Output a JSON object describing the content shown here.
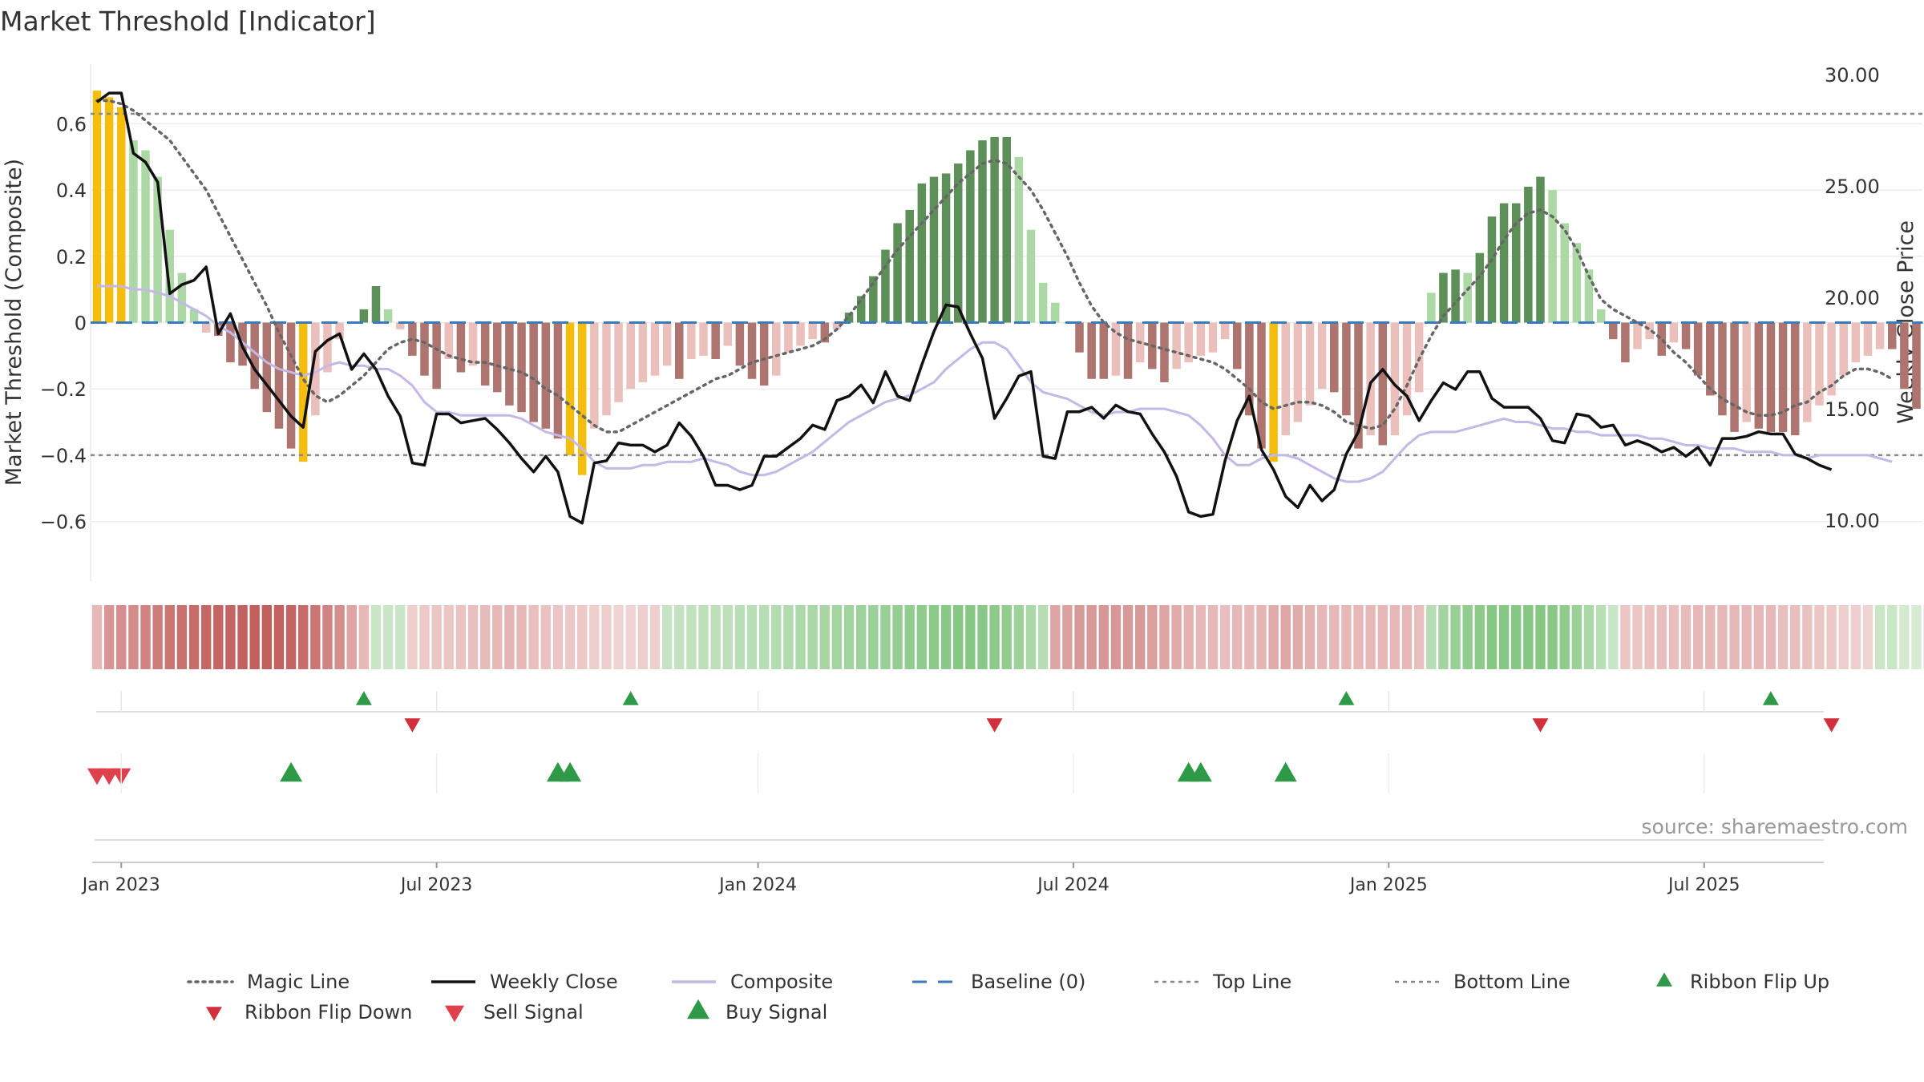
{
  "chart_data": {
    "type": "bar",
    "title": "Market Threshold [Indicator]",
    "ylabel_left": "Market Threshold (Composite)",
    "ylabel_right": "Weekly Close Price",
    "source": "source: sharemaestro.com",
    "ylim_left": [
      -0.78,
      0.78
    ],
    "ylim_right": [
      7.3,
      30.5
    ],
    "yticks_left": [
      0.6,
      0.4,
      0.2,
      0,
      -0.2,
      -0.4,
      -0.6
    ],
    "yticks_left_labels": [
      "0.6",
      "0.4",
      "0.2",
      "0",
      "−0.2",
      "−0.4",
      "−0.6"
    ],
    "yticks_right": [
      30,
      25,
      20,
      15,
      10
    ],
    "yticks_right_labels": [
      "30.00",
      "25.00",
      "20.00",
      "15.00",
      "10.00"
    ],
    "top_line": 0.63,
    "bottom_line": -0.4,
    "xticks": [
      {
        "label": "Jan 2023",
        "week": 2
      },
      {
        "label": "Jul 2023",
        "week": 28
      },
      {
        "label": "Jan 2024",
        "week": 54.5
      },
      {
        "label": "Jul 2024",
        "week": 80.5
      },
      {
        "label": "Jan 2025",
        "week": 106.5
      },
      {
        "label": "Jul 2025",
        "week": 132.5
      }
    ],
    "composite_bars": [
      0.7,
      0.68,
      0.65,
      0.55,
      0.52,
      0.44,
      0.28,
      0.15,
      0.04,
      -0.03,
      -0.04,
      -0.12,
      -0.13,
      -0.2,
      -0.27,
      -0.32,
      -0.38,
      -0.42,
      -0.28,
      -0.15,
      -0.05,
      0,
      0.04,
      0.11,
      0.04,
      -0.02,
      -0.1,
      -0.16,
      -0.2,
      -0.11,
      -0.15,
      -0.13,
      -0.19,
      -0.21,
      -0.25,
      -0.27,
      -0.3,
      -0.32,
      -0.35,
      -0.4,
      -0.46,
      -0.32,
      -0.28,
      -0.24,
      -0.2,
      -0.18,
      -0.16,
      -0.13,
      -0.17,
      -0.11,
      -0.1,
      -0.11,
      -0.07,
      -0.13,
      -0.17,
      -0.19,
      -0.16,
      -0.09,
      -0.07,
      -0.05,
      -0.06,
      -0.02,
      0.03,
      0.08,
      0.14,
      0.22,
      0.3,
      0.34,
      0.42,
      0.44,
      0.45,
      0.48,
      0.52,
      0.55,
      0.56,
      0.56,
      0.5,
      0.28,
      0.12,
      0.06,
      0,
      -0.09,
      -0.17,
      -0.17,
      -0.16,
      -0.17,
      -0.12,
      -0.14,
      -0.18,
      -0.14,
      -0.12,
      -0.1,
      -0.09,
      -0.05,
      -0.14,
      -0.28,
      -0.38,
      -0.42,
      -0.34,
      -0.3,
      -0.25,
      -0.2,
      -0.21,
      -0.28,
      -0.38,
      -0.34,
      -0.37,
      -0.34,
      -0.28,
      -0.21,
      0.09,
      0.15,
      0.16,
      0.15,
      0.21,
      0.32,
      0.36,
      0.36,
      0.41,
      0.44,
      0.4,
      0.3,
      0.24,
      0.16,
      0.04,
      -0.05,
      -0.12,
      -0.08,
      -0.05,
      -0.1,
      -0.06,
      -0.08,
      -0.16,
      -0.22,
      -0.28,
      -0.33,
      -0.3,
      -0.32,
      -0.33,
      -0.33,
      -0.34,
      -0.3,
      -0.25,
      -0.22,
      -0.16,
      -0.12,
      -0.1,
      -0.08,
      -0.08,
      -0.2,
      -0.26
    ],
    "bar_colors_legend": {
      "extreme": "#f5bd0c",
      "strong_pos": "#5d8f58",
      "weak_pos": "#abd8a4",
      "strong_neg": "#ad7470",
      "weak_neg": "#ebbfbb"
    },
    "magic_line": [
      0.67,
      0.67,
      0.66,
      0.64,
      0.61,
      0.58,
      0.55,
      0.5,
      0.45,
      0.4,
      0.33,
      0.26,
      0.19,
      0.12,
      0.05,
      -0.03,
      -0.1,
      -0.17,
      -0.22,
      -0.24,
      -0.22,
      -0.19,
      -0.16,
      -0.12,
      -0.08,
      -0.06,
      -0.05,
      -0.06,
      -0.08,
      -0.1,
      -0.11,
      -0.12,
      -0.12,
      -0.13,
      -0.14,
      -0.15,
      -0.17,
      -0.2,
      -0.22,
      -0.25,
      -0.28,
      -0.31,
      -0.33,
      -0.33,
      -0.31,
      -0.29,
      -0.27,
      -0.25,
      -0.23,
      -0.21,
      -0.19,
      -0.17,
      -0.16,
      -0.14,
      -0.12,
      -0.11,
      -0.1,
      -0.09,
      -0.08,
      -0.07,
      -0.05,
      -0.02,
      0.02,
      0.07,
      0.12,
      0.17,
      0.22,
      0.26,
      0.3,
      0.34,
      0.38,
      0.42,
      0.45,
      0.48,
      0.49,
      0.48,
      0.44,
      0.4,
      0.34,
      0.27,
      0.2,
      0.12,
      0.05,
      0,
      -0.03,
      -0.05,
      -0.06,
      -0.07,
      -0.08,
      -0.09,
      -0.1,
      -0.11,
      -0.12,
      -0.14,
      -0.17,
      -0.2,
      -0.24,
      -0.26,
      -0.25,
      -0.24,
      -0.24,
      -0.25,
      -0.27,
      -0.3,
      -0.31,
      -0.32,
      -0.31,
      -0.26,
      -0.19,
      -0.11,
      -0.04,
      0.02,
      0.06,
      0.1,
      0.14,
      0.19,
      0.25,
      0.3,
      0.33,
      0.34,
      0.32,
      0.28,
      0.22,
      0.14,
      0.07,
      0.04,
      0.02,
      0,
      -0.02,
      -0.05,
      -0.09,
      -0.12,
      -0.16,
      -0.2,
      -0.23,
      -0.25,
      -0.27,
      -0.28,
      -0.28,
      -0.27,
      -0.25,
      -0.24,
      -0.21,
      -0.19,
      -0.16,
      -0.14,
      -0.14,
      -0.15,
      -0.17
    ],
    "composite_line": [
      0.11,
      0.11,
      0.11,
      0.1,
      0.1,
      0.09,
      0.08,
      0.06,
      0.04,
      0.02,
      -0.01,
      -0.03,
      -0.06,
      -0.09,
      -0.12,
      -0.14,
      -0.15,
      -0.16,
      -0.15,
      -0.13,
      -0.12,
      -0.13,
      -0.13,
      -0.14,
      -0.14,
      -0.16,
      -0.19,
      -0.24,
      -0.27,
      -0.27,
      -0.28,
      -0.28,
      -0.28,
      -0.28,
      -0.28,
      -0.29,
      -0.31,
      -0.33,
      -0.34,
      -0.35,
      -0.38,
      -0.42,
      -0.44,
      -0.44,
      -0.44,
      -0.43,
      -0.43,
      -0.42,
      -0.42,
      -0.42,
      -0.41,
      -0.42,
      -0.43,
      -0.45,
      -0.46,
      -0.46,
      -0.45,
      -0.43,
      -0.41,
      -0.39,
      -0.36,
      -0.33,
      -0.3,
      -0.28,
      -0.26,
      -0.24,
      -0.23,
      -0.22,
      -0.2,
      -0.18,
      -0.14,
      -0.11,
      -0.08,
      -0.06,
      -0.06,
      -0.08,
      -0.13,
      -0.18,
      -0.21,
      -0.22,
      -0.23,
      -0.25,
      -0.27,
      -0.28,
      -0.27,
      -0.27,
      -0.26,
      -0.26,
      -0.26,
      -0.27,
      -0.28,
      -0.31,
      -0.35,
      -0.4,
      -0.43,
      -0.43,
      -0.41,
      -0.4,
      -0.4,
      -0.41,
      -0.43,
      -0.45,
      -0.47,
      -0.48,
      -0.48,
      -0.47,
      -0.45,
      -0.41,
      -0.37,
      -0.34,
      -0.33,
      -0.33,
      -0.33,
      -0.32,
      -0.31,
      -0.3,
      -0.29,
      -0.3,
      -0.3,
      -0.31,
      -0.32,
      -0.32,
      -0.33,
      -0.33,
      -0.34,
      -0.34,
      -0.34,
      -0.34,
      -0.35,
      -0.35,
      -0.36,
      -0.37,
      -0.37,
      -0.38,
      -0.38,
      -0.38,
      -0.39,
      -0.39,
      -0.39,
      -0.4,
      -0.4,
      -0.41,
      -0.4,
      -0.4,
      -0.4,
      -0.4,
      -0.4,
      -0.41,
      -0.42
    ],
    "weekly_close": [
      28.8,
      29.2,
      29.2,
      26.5,
      26.1,
      25.2,
      20.2,
      20.6,
      20.8,
      21.4,
      18.4,
      19.3,
      17.8,
      16.8,
      16.1,
      15.4,
      14.7,
      14.2,
      17.6,
      18.1,
      18.4,
      16.8,
      17.5,
      16.8,
      15.6,
      14.7,
      12.6,
      12.5,
      14.8,
      14.8,
      14.4,
      14.5,
      14.6,
      14.1,
      13.5,
      12.8,
      12.2,
      12.9,
      12.2,
      10.2,
      9.9,
      12.6,
      12.7,
      13.5,
      13.4,
      13.4,
      13.1,
      13.4,
      14.4,
      13.8,
      12.9,
      11.6,
      11.6,
      11.4,
      11.6,
      12.9,
      12.9,
      13.3,
      13.7,
      14.3,
      14.1,
      15.4,
      15.6,
      16.1,
      15.3,
      16.7,
      15.6,
      15.4,
      17.0,
      18.5,
      19.7,
      19.6,
      18.4,
      17.3,
      14.6,
      15.5,
      16.5,
      16.7,
      12.9,
      12.8,
      14.9,
      14.9,
      15.1,
      14.6,
      15.2,
      14.9,
      14.8,
      13.9,
      13.1,
      12.0,
      10.4,
      10.2,
      10.3,
      12.7,
      14.5,
      15.6,
      13.2,
      12.3,
      11.1,
      10.6,
      11.6,
      10.9,
      11.4,
      13.0,
      14.0,
      16.2,
      16.8,
      16.1,
      15.6,
      14.5,
      15.4,
      16.2,
      15.9,
      16.7,
      16.7,
      15.5,
      15.1,
      15.1,
      15.1,
      14.6,
      13.6,
      13.5,
      14.8,
      14.7,
      14.2,
      14.3,
      13.4,
      13.6,
      13.4,
      13.1,
      13.3,
      12.9,
      13.3,
      12.5,
      13.7,
      13.7,
      13.8,
      14.0,
      13.9,
      13.9,
      13.0,
      12.8,
      12.5,
      12.3
    ],
    "ribbon_colors": [
      "#e6b9b8",
      "#d99594",
      "#d58e8d",
      "#d48c8b",
      "#d18381",
      "#cf7d7b",
      "#cc7674",
      "#ca716f",
      "#c86c6a",
      "#c66765",
      "#c56563",
      "#c56563",
      "#c36160",
      "#c3605e",
      "#c3605e",
      "#c36160",
      "#c56563",
      "#c86c6a",
      "#cc7674",
      "#d18381",
      "#d58e8d",
      "#dea5a4",
      "#e6b9b8",
      "#c9e6c6",
      "#c9e6c6",
      "#c9e6c6",
      "#eecfce",
      "#ecc9c8",
      "#ebc6c5",
      "#ebc6c5",
      "#e9c2c1",
      "#e8bfbe",
      "#e6bcbb",
      "#e6b9b8",
      "#e4b5b4",
      "#e6b9b8",
      "#e8bfbe",
      "#e9c2c1",
      "#ebc6c5",
      "#ecc9c8",
      "#ecc9c8",
      "#eecfce",
      "#eecfce",
      "#f0d4d3",
      "#f0d4d3",
      "#eecfce",
      "#eecfce",
      "#c6e4c3",
      "#c3e3c0",
      "#c0e2bd",
      "#bde0ba",
      "#bde0ba",
      "#bde0ba",
      "#b9dfb6",
      "#b9dfb6",
      "#b6ddb3",
      "#b3dcb0",
      "#b0dbad",
      "#add9aa",
      "#aad8a7",
      "#a7d6a4",
      "#a4d5a1",
      "#a1d49e",
      "#9ed29b",
      "#9bd198",
      "#98cf95",
      "#95ce92",
      "#92cd8f",
      "#8fcb8c",
      "#8cca89",
      "#89c886",
      "#86c783",
      "#86c783",
      "#89c886",
      "#8cca89",
      "#92cd8f",
      "#9ed29b",
      "#aad8a7",
      "#b6ddb3",
      "#dea5a4",
      "#dba09f",
      "#d89a99",
      "#d89a99",
      "#d79796",
      "#d79796",
      "#d89a99",
      "#d89a99",
      "#db9f9e",
      "#dea5a4",
      "#e1abaa",
      "#e4b2b1",
      "#e6b9b8",
      "#e6b9b8",
      "#e8bfbe",
      "#e6b9b8",
      "#e6b9b8",
      "#e4b5b4",
      "#e1abaa",
      "#dfa8a7",
      "#e1abaa",
      "#e4b2b1",
      "#e6b9b8",
      "#e6b9b8",
      "#e6b9b8",
      "#e6b9b8",
      "#e6b9b8",
      "#e6b9b8",
      "#e6b9b8",
      "#e6b9b8",
      "#e8bfbe",
      "#b6ddb3",
      "#a4d5a1",
      "#98cf95",
      "#92cd8f",
      "#8cca89",
      "#86c783",
      "#86c783",
      "#86c783",
      "#86c783",
      "#86c783",
      "#89c886",
      "#8fcb8c",
      "#9bd198",
      "#aad8a7",
      "#b9dfb6",
      "#c9e6c6",
      "#ebc6c5",
      "#ebc6c5",
      "#e9c2c1",
      "#e8bfbe",
      "#e8bfbe",
      "#e6bcbb",
      "#e6b9b8",
      "#e6b9b8",
      "#e6b9b8",
      "#e6b9b8",
      "#e6b9b8",
      "#e6b9b8",
      "#e6b9b8",
      "#e8bfbe",
      "#e8bfbe",
      "#e9c2c1",
      "#ebc6c5",
      "#ecc9c8",
      "#eecfce",
      "#eecfce",
      "#f0d4d3",
      "#c9e6c6",
      "#c9e6c6",
      "#d4ebd1",
      "#d8ecd5",
      "#f3dcdb"
    ],
    "ribbon_flip_up_weeks": [
      22,
      44,
      103,
      138
    ],
    "ribbon_flip_down_weeks": [
      26,
      74,
      119,
      143
    ],
    "sell_signal_weeks": [
      0,
      1,
      2
    ],
    "buy_signal_weeks": [
      16,
      38,
      39,
      90,
      91,
      98
    ],
    "legend": [
      {
        "label": "Magic Line",
        "style": "dotted-gray"
      },
      {
        "label": "Weekly Close",
        "style": "solid-black"
      },
      {
        "label": "Composite",
        "style": "solid-lavender"
      },
      {
        "label": "Baseline (0)",
        "style": "dashed-blue"
      },
      {
        "label": "Top Line",
        "style": "dashed-gray"
      },
      {
        "label": "Bottom Line",
        "style": "dashed-gray"
      },
      {
        "label": "Ribbon Flip Up",
        "style": "triangle-up-green"
      },
      {
        "label": "Ribbon Flip Down",
        "style": "triangle-down-red"
      },
      {
        "label": "Sell Signal",
        "style": "triangle-down-crimson"
      },
      {
        "label": "Buy Signal",
        "style": "triangle-up-green-large"
      }
    ],
    "colors": {
      "magic_line": "#666666",
      "weekly_close": "#111111",
      "composite_line": "#c3b8e6",
      "baseline": "#3a7bbf",
      "ref_lines": "#888888",
      "ribbon_flip_up": "#2e9a47",
      "ribbon_flip_down": "#d0313d",
      "sell_signal": "#e0404c",
      "buy_signal": "#2e9a47",
      "text": "#333333",
      "source_text": "#999999",
      "grid": "#eeeeee"
    }
  }
}
